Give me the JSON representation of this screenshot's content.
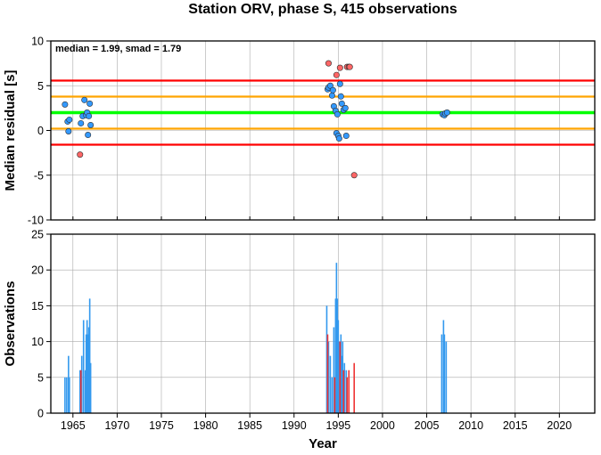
{
  "title": "Station ORV, phase S, 415 observations",
  "colors": {
    "red_line": "#ff0000",
    "orange_line": "#ffa500",
    "green_line": "#00ff00",
    "blue_point": "#3399ff",
    "red_point": "#ff6666",
    "blue_bar": "#3399ee",
    "red_bar": "#ee3333",
    "grid": "#aaaaaa"
  },
  "chart_data": [
    {
      "type": "scatter",
      "annotation": "median = 1.99, smad = 1.79",
      "xlabel": "",
      "ylabel": "Median residual [s]",
      "xlim": [
        1962.5,
        2024
      ],
      "ylim": [
        -10,
        10
      ],
      "yticks": [
        10,
        5,
        0,
        -5,
        -10
      ],
      "grid": true,
      "hlines": [
        {
          "y": 5.57,
          "color": "red"
        },
        {
          "y": 3.78,
          "color": "orange"
        },
        {
          "y": 1.99,
          "color": "green"
        },
        {
          "y": 0.2,
          "color": "orange"
        },
        {
          "y": -1.59,
          "color": "red"
        }
      ],
      "series": [
        {
          "color": "blue",
          "points": [
            [
              1964.1,
              2.9
            ],
            [
              1964.4,
              1.0
            ],
            [
              1964.6,
              1.2
            ],
            [
              1964.5,
              -0.1
            ],
            [
              1965.9,
              0.8
            ],
            [
              1966.1,
              1.6
            ],
            [
              1966.3,
              3.4
            ],
            [
              1966.5,
              1.7
            ],
            [
              1966.6,
              2.0
            ],
            [
              1966.8,
              1.6
            ],
            [
              1966.7,
              -0.5
            ],
            [
              1966.9,
              3.0
            ],
            [
              1967.0,
              0.6
            ],
            [
              1993.8,
              4.6
            ],
            [
              1993.9,
              4.8
            ],
            [
              1994.1,
              5.0
            ],
            [
              1994.3,
              3.9
            ],
            [
              1994.4,
              4.5
            ],
            [
              1994.5,
              2.7
            ],
            [
              1994.7,
              2.2
            ],
            [
              1994.8,
              -0.3
            ],
            [
              1994.9,
              1.8
            ],
            [
              1995.0,
              -0.6
            ],
            [
              1995.1,
              -0.9
            ],
            [
              1995.2,
              5.2
            ],
            [
              1995.3,
              3.8
            ],
            [
              1995.4,
              3.0
            ],
            [
              1995.6,
              2.3
            ],
            [
              1995.8,
              2.5
            ],
            [
              1995.9,
              -0.6
            ],
            [
              2006.8,
              1.8
            ],
            [
              2007.0,
              1.7
            ],
            [
              2007.1,
              1.9
            ],
            [
              2007.3,
              2.0
            ]
          ]
        },
        {
          "color": "red",
          "points": [
            [
              1965.8,
              -2.7
            ],
            [
              1993.9,
              7.5
            ],
            [
              1994.8,
              6.2
            ],
            [
              1995.2,
              7.0
            ],
            [
              1996.0,
              7.1
            ],
            [
              1996.2,
              7.1
            ],
            [
              1996.3,
              7.1
            ],
            [
              1996.8,
              -5.0
            ]
          ]
        }
      ]
    },
    {
      "type": "bar",
      "xlabel": "Year",
      "ylabel": "Observations",
      "xlim": [
        1962.5,
        2024
      ],
      "ylim": [
        0,
        25
      ],
      "xticks": [
        1965,
        1970,
        1975,
        1980,
        1985,
        1990,
        1995,
        2000,
        2005,
        2010,
        2015,
        2020
      ],
      "yticks": [
        25,
        20,
        15,
        10,
        5,
        0
      ],
      "grid": true,
      "series": [
        {
          "color": "blue",
          "bars": [
            [
              1964.1,
              5
            ],
            [
              1964.3,
              5
            ],
            [
              1964.5,
              8
            ],
            [
              1964.6,
              5
            ],
            [
              1965.8,
              6
            ],
            [
              1966.0,
              8
            ],
            [
              1966.2,
              13
            ],
            [
              1966.4,
              6
            ],
            [
              1966.5,
              11
            ],
            [
              1966.6,
              13
            ],
            [
              1966.7,
              11
            ],
            [
              1966.8,
              12
            ],
            [
              1966.9,
              16
            ],
            [
              1967.0,
              7
            ],
            [
              1993.7,
              15
            ],
            [
              1993.9,
              10
            ],
            [
              1994.1,
              8
            ],
            [
              1994.3,
              5
            ],
            [
              1994.5,
              12
            ],
            [
              1994.7,
              16
            ],
            [
              1994.8,
              21
            ],
            [
              1994.9,
              16
            ],
            [
              1995.0,
              13
            ],
            [
              1995.1,
              10
            ],
            [
              1995.3,
              11
            ],
            [
              1995.4,
              8
            ],
            [
              1995.5,
              10
            ],
            [
              1995.7,
              7
            ],
            [
              1995.9,
              6
            ],
            [
              2006.7,
              11
            ],
            [
              2006.9,
              13
            ],
            [
              2007.0,
              11
            ],
            [
              2007.2,
              10
            ]
          ]
        },
        {
          "color": "red",
          "bars": [
            [
              1965.9,
              6
            ],
            [
              1993.8,
              11
            ],
            [
              1994.6,
              5
            ],
            [
              1995.2,
              10
            ],
            [
              1995.6,
              6
            ],
            [
              1996.0,
              5
            ],
            [
              1996.2,
              6
            ],
            [
              1996.8,
              7
            ]
          ]
        }
      ]
    }
  ]
}
